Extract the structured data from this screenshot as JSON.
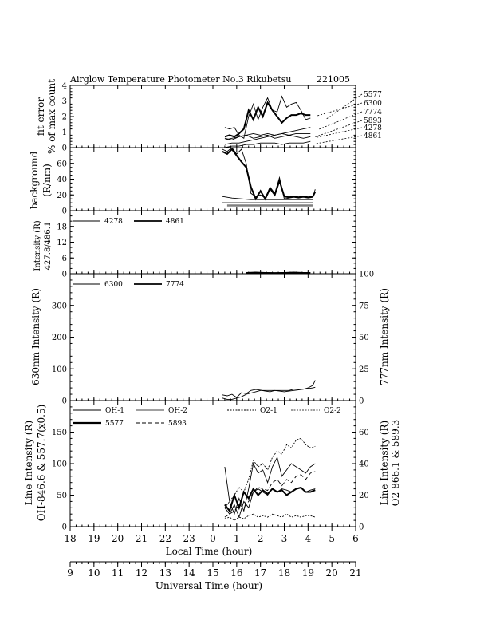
{
  "title": {
    "left": "Airglow Temperature Photometer No.3  Rikubetsu",
    "right": "221005"
  },
  "axes": {
    "local_time": {
      "label": "Local Time (hour)",
      "ticks": [
        "18",
        "19",
        "20",
        "21",
        "22",
        "23",
        "0",
        "1",
        "2",
        "3",
        "4",
        "5",
        "6"
      ]
    },
    "universal_time": {
      "label": "Universal Time (hour)",
      "ticks": [
        "9",
        "10",
        "11",
        "12",
        "13",
        "14",
        "15",
        "16",
        "17",
        "18",
        "19",
        "20",
        "21"
      ]
    }
  },
  "legend_labels": {
    "p1": [
      "5577",
      "6300",
      "7774",
      "5893",
      "4278",
      "4861"
    ],
    "p3": [
      "4278",
      "4861"
    ],
    "p4": [
      "6300",
      "7774"
    ],
    "p5": [
      "OH-1",
      "OH-2",
      "O2-1",
      "O2-2",
      "5577",
      "5893"
    ]
  },
  "panels": {
    "p1": {
      "ylabel1": "fit error",
      "ylabel2": "% of max count",
      "yticks": [
        "0",
        "1",
        "2",
        "3",
        "4"
      ]
    },
    "p2": {
      "ylabel1": "background",
      "ylabel2": "(R/nm)",
      "yticks": [
        "0",
        "20",
        "40",
        "60"
      ]
    },
    "p3": {
      "ylabel1": "Intensity (R)",
      "ylabel2": "427.8/486.1",
      "yticks": [
        "0",
        "6",
        "12",
        "18"
      ]
    },
    "p4": {
      "ylabel_left": "630nm Intensity (R)",
      "ylabel_right": "777nm Intensity (R)",
      "yticks_left": [
        "0",
        "100",
        "200",
        "300"
      ],
      "yticks_right": [
        "0",
        "25",
        "50",
        "75",
        "100"
      ]
    },
    "p5": {
      "ylabel_left1": "Line Intensity (R)",
      "ylabel_left2": "OH-846.6 & 557.7(x0.5)",
      "ylabel_right1": "Line Intensity (R)",
      "ylabel_right2": "O2-866.1 & 589.3",
      "yticks_left": [
        "0",
        "50",
        "100",
        "150"
      ],
      "yticks_right": [
        "0",
        "20",
        "40",
        "60"
      ]
    }
  },
  "chart_data": {
    "type": "line",
    "x_unit": "local time (hour, relative to midnight)",
    "xlim": [
      -6,
      6
    ],
    "panels": [
      {
        "id": "p1",
        "ylim": [
          0,
          4
        ],
        "series": [
          {
            "name": "5577",
            "style": "thick",
            "x": [
              0.5,
              0.7,
              0.9,
              1.1,
              1.3,
              1.5,
              1.7,
              1.9,
              2.1,
              2.3,
              2.5,
              2.7,
              2.9,
              3.1,
              3.3,
              3.5,
              3.7,
              3.9,
              4.1
            ],
            "y": [
              0.7,
              0.8,
              0.7,
              0.9,
              1.2,
              2.4,
              1.8,
              2.6,
              2.0,
              2.9,
              2.4,
              2.0,
              1.6,
              1.9,
              2.1,
              2.1,
              2.2,
              2.1,
              2.1
            ]
          },
          {
            "name": "6300",
            "style": "thin",
            "x": [
              0.5,
              0.7,
              0.9,
              1.1,
              1.3,
              1.5,
              1.7,
              1.9,
              2.1,
              2.3,
              2.5,
              2.7,
              2.9,
              3.1,
              3.3,
              3.5,
              3.7,
              3.9,
              4.1
            ],
            "y": [
              1.3,
              1.2,
              1.3,
              0.8,
              0.6,
              2.0,
              2.8,
              1.8,
              2.6,
              3.2,
              2.4,
              2.3,
              3.3,
              2.6,
              2.8,
              2.9,
              2.4,
              1.8,
              1.9
            ]
          },
          {
            "name": "7774",
            "style": "thin",
            "x": [
              0.5,
              0.8,
              1.1,
              1.4,
              1.7,
              2.0,
              2.3,
              2.6,
              2.9,
              3.2,
              3.5,
              3.8,
              4.1
            ],
            "y": [
              0.2,
              0.3,
              0.3,
              0.4,
              0.5,
              0.6,
              0.7,
              0.8,
              0.9,
              1.0,
              1.1,
              1.2,
              1.3
            ]
          },
          {
            "name": "5893",
            "style": "thin",
            "x": [
              0.5,
              0.8,
              1.1,
              1.4,
              1.7,
              2.0,
              2.3,
              2.6,
              2.9,
              3.2,
              3.5,
              3.8,
              4.1
            ],
            "y": [
              0.5,
              0.6,
              0.7,
              0.8,
              0.9,
              0.8,
              0.9,
              0.8,
              0.9,
              0.8,
              0.9,
              0.9,
              0.9
            ]
          },
          {
            "name": "4278",
            "style": "thin",
            "x": [
              0.5,
              0.8,
              1.1,
              1.4,
              1.7,
              2.0,
              2.3,
              2.6,
              2.9,
              3.2,
              3.5,
              3.8,
              4.1
            ],
            "y": [
              0.6,
              0.5,
              0.7,
              0.8,
              0.6,
              0.7,
              0.8,
              0.6,
              0.7,
              0.8,
              0.7,
              0.6,
              0.7
            ]
          },
          {
            "name": "4861",
            "style": "thin",
            "x": [
              0.5,
              0.8,
              1.1,
              1.4,
              1.7,
              2.0,
              2.3,
              2.6,
              2.9,
              3.2,
              3.5,
              3.8,
              4.1
            ],
            "y": [
              0.0,
              0.1,
              0.1,
              0.2,
              0.2,
              0.3,
              0.3,
              0.3,
              0.2,
              0.3,
              0.3,
              0.3,
              0.4
            ]
          }
        ]
      },
      {
        "id": "p2",
        "ylim": [
          0,
          80
        ],
        "series": [
          {
            "name": "5577",
            "style": "thick",
            "x": [
              0.4,
              0.6,
              0.8,
              1.0,
              1.2,
              1.4,
              1.6,
              1.8,
              2.0,
              2.2,
              2.4,
              2.6,
              2.8,
              3.0,
              3.2,
              3.4,
              3.6,
              3.8,
              4.0,
              4.2,
              4.3
            ],
            "y": [
              75,
              72,
              78,
              70,
              62,
              55,
              30,
              15,
              25,
              15,
              28,
              20,
              38,
              18,
              17,
              18,
              17,
              18,
              17,
              18,
              24
            ]
          },
          {
            "name": "6300",
            "style": "thin",
            "x": [
              0.4,
              0.6,
              0.8,
              1.0,
              1.2,
              1.4,
              1.6,
              1.8,
              2.0,
              2.2,
              2.4,
              2.6,
              2.8,
              3.0,
              3.2,
              3.4,
              3.6,
              3.8,
              4.0,
              4.2,
              4.3
            ],
            "y": [
              78,
              75,
              80,
              72,
              78,
              60,
              22,
              18,
              20,
              16,
              30,
              22,
              42,
              15,
              16,
              17,
              16,
              17,
              16,
              17,
              27
            ]
          },
          {
            "name": "7774",
            "style": "thin",
            "x": [
              0.4,
              0.8,
              1.2,
              1.6,
              2.0,
              2.4,
              2.8,
              3.2,
              3.6,
              4.0,
              4.2
            ],
            "y": [
              18,
              16,
              15,
              14,
              14,
              14,
              14,
              14,
              14,
              14,
              14
            ]
          },
          {
            "name": "5893",
            "style": "thin",
            "x": [
              0.4,
              4.2
            ],
            "y": [
              10,
              10
            ]
          },
          {
            "name": "4278",
            "style": "thin",
            "x": [
              0.6,
              4.2
            ],
            "y": [
              7,
              7
            ]
          },
          {
            "name": "4861",
            "style": "thin",
            "x": [
              0.6,
              4.2
            ],
            "y": [
              5,
              5
            ]
          }
        ]
      },
      {
        "id": "p3",
        "ylim": [
          0,
          24
        ],
        "series": [
          {
            "name": "4278",
            "style": "thin",
            "x": [
              1.4,
              1.8,
              2.2,
              2.6,
              3.0,
              3.4,
              3.8,
              4.1
            ],
            "y": [
              0.5,
              0.6,
              0.5,
              0.4,
              0.5,
              0.6,
              0.5,
              0.5
            ]
          },
          {
            "name": "4861",
            "style": "thick",
            "x": [
              1.4,
              1.8,
              2.2,
              2.6,
              3.0,
              3.4,
              3.8,
              4.1
            ],
            "y": [
              0.3,
              0.2,
              0.3,
              0.2,
              0.3,
              0.2,
              0.3,
              0.3
            ]
          }
        ]
      },
      {
        "id": "p4",
        "ylim": [
          0,
          400
        ],
        "y2lim": [
          0,
          100
        ],
        "series": [
          {
            "name": "6300",
            "style": "thin",
            "x": [
              0.4,
              0.6,
              0.8,
              1.0,
              1.2,
              1.4,
              1.6,
              1.8,
              2.0,
              2.2,
              2.4,
              2.6,
              2.8,
              3.0,
              3.2,
              3.4,
              3.6,
              3.8,
              4.0,
              4.2,
              4.3
            ],
            "y": [
              18,
              15,
              20,
              10,
              25,
              22,
              32,
              35,
              33,
              30,
              28,
              32,
              30,
              28,
              30,
              32,
              34,
              36,
              38,
              40,
              42
            ]
          },
          {
            "name": "7774",
            "style": "thin",
            "axis": "right",
            "x": [
              0.4,
              0.6,
              0.8,
              1.0,
              1.2,
              1.4,
              1.6,
              1.8,
              2.0,
              2.2,
              2.4,
              2.6,
              2.8,
              3.0,
              3.2,
              3.4,
              3.6,
              3.8,
              4.0,
              4.2,
              4.3
            ],
            "y": [
              2,
              1,
              1,
              2,
              3,
              5,
              6,
              7,
              8,
              8,
              8,
              8,
              8,
              8,
              8,
              9,
              9,
              9,
              10,
              12,
              16
            ]
          }
        ]
      },
      {
        "id": "p5",
        "ylim": [
          0,
          200
        ],
        "y2lim": [
          0,
          80
        ],
        "series": [
          {
            "name": "OH-1",
            "style": "thin",
            "x": [
              0.5,
              0.7,
              0.9,
              1.1,
              1.3,
              1.5,
              1.7,
              1.9,
              2.1,
              2.3,
              2.5,
              2.7,
              2.9,
              3.1,
              3.3,
              3.5,
              3.7,
              3.9,
              4.1,
              4.3
            ],
            "y": [
              95,
              40,
              20,
              45,
              25,
              60,
              100,
              85,
              90,
              70,
              95,
              110,
              80,
              90,
              100,
              95,
              90,
              85,
              95,
              100
            ]
          },
          {
            "name": "OH-2",
            "style": "thin",
            "x": [
              0.5,
              0.7,
              0.9,
              1.1,
              1.3,
              1.5,
              1.7,
              1.9,
              2.1,
              2.3,
              2.5,
              2.7,
              2.9,
              3.1,
              3.3,
              3.5,
              3.7,
              3.9,
              4.1,
              4.3
            ],
            "y": [
              30,
              20,
              35,
              15,
              40,
              30,
              55,
              60,
              55,
              50,
              60,
              55,
              60,
              58,
              55,
              60,
              62,
              55,
              58,
              60
            ]
          },
          {
            "name": "O2-1",
            "style": "dotted",
            "axis": "right",
            "x": [
              0.5,
              0.7,
              0.9,
              1.1,
              1.3,
              1.5,
              1.7,
              1.9,
              2.1,
              2.3,
              2.5,
              2.7,
              2.9,
              3.1,
              3.3,
              3.5,
              3.7,
              3.9,
              4.1,
              4.3
            ],
            "y": [
              12,
              16,
              20,
              25,
              22,
              30,
              42,
              38,
              40,
              36,
              44,
              48,
              46,
              52,
              50,
              55,
              56,
              52,
              50,
              51
            ]
          },
          {
            "name": "O2-2",
            "style": "dotted",
            "axis": "right",
            "x": [
              0.5,
              0.7,
              0.9,
              1.1,
              1.3,
              1.5,
              1.7,
              1.9,
              2.1,
              2.3,
              2.5,
              2.7,
              2.9,
              3.1,
              3.3,
              3.5,
              3.7,
              3.9,
              4.1,
              4.3
            ],
            "y": [
              5,
              6,
              4,
              6,
              5,
              7,
              8,
              6,
              7,
              6,
              8,
              7,
              6,
              8,
              6,
              7,
              6,
              7,
              7,
              6
            ]
          },
          {
            "name": "5577",
            "style": "thick",
            "x": [
              0.5,
              0.7,
              0.9,
              1.1,
              1.3,
              1.5,
              1.7,
              1.9,
              2.1,
              2.3,
              2.5,
              2.7,
              2.9,
              3.1,
              3.3,
              3.5,
              3.7,
              3.9,
              4.1,
              4.3
            ],
            "y": [
              35,
              25,
              50,
              30,
              55,
              45,
              60,
              50,
              58,
              52,
              60,
              55,
              58,
              50,
              55,
              60,
              62,
              55,
              55,
              58
            ]
          },
          {
            "name": "5893",
            "style": "dashed",
            "axis": "right",
            "x": [
              0.5,
              0.7,
              0.9,
              1.1,
              1.3,
              1.5,
              1.7,
              1.9,
              2.1,
              2.3,
              2.5,
              2.7,
              2.9,
              3.1,
              3.3,
              3.5,
              3.7,
              3.9,
              4.1,
              4.3
            ],
            "y": [
              6,
              8,
              10,
              14,
              12,
              16,
              22,
              25,
              24,
              23,
              28,
              30,
              26,
              30,
              28,
              32,
              33,
              30,
              34,
              35
            ]
          }
        ]
      }
    ]
  }
}
